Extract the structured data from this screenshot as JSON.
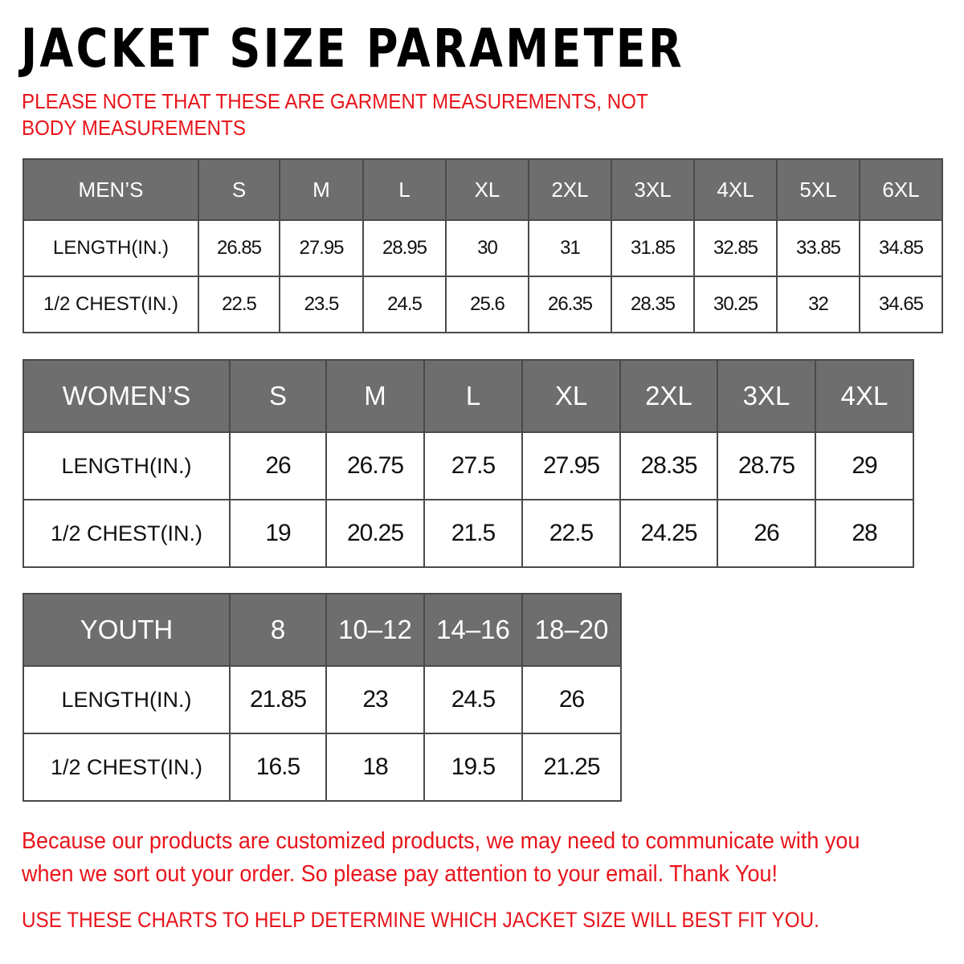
{
  "title": "JACKET SIZE PARAMETER",
  "note": "PLEASE NOTE THAT THESE ARE GARMENT MEASUREMENTS, NOT BODY MEASUREMENTS",
  "colors": {
    "header_bg": "#6e6e6e",
    "accent_red": "#e8141b"
  },
  "tables": {
    "men": {
      "header": [
        "MEN’S",
        "S",
        "M",
        "L",
        "XL",
        "2XL",
        "3XL",
        "4XL",
        "5XL",
        "6XL"
      ],
      "rows": [
        [
          "LENGTH(IN.)",
          "26.85",
          "27.95",
          "28.95",
          "30",
          "31",
          "31.85",
          "32.85",
          "33.85",
          "34.85"
        ],
        [
          "1/2 CHEST(IN.)",
          "22.5",
          "23.5",
          "24.5",
          "25.6",
          "26.35",
          "28.35",
          "30.25",
          "32",
          "34.65"
        ]
      ]
    },
    "women": {
      "header": [
        "WOMEN’S",
        "S",
        "M",
        "L",
        "XL",
        "2XL",
        "3XL",
        "4XL"
      ],
      "rows": [
        [
          "LENGTH(IN.)",
          "26",
          "26.75",
          "27.5",
          "27.95",
          "28.35",
          "28.75",
          "29"
        ],
        [
          "1/2 CHEST(IN.)",
          "19",
          "20.25",
          "21.5",
          "22.5",
          "24.25",
          "26",
          "28"
        ]
      ]
    },
    "youth": {
      "header": [
        "YOUTH",
        "8",
        "10–12",
        "14–16",
        "18–20"
      ],
      "rows": [
        [
          "LENGTH(IN.)",
          "21.85",
          "23",
          "24.5",
          "26"
        ],
        [
          "1/2 CHEST(IN.)",
          "16.5",
          "18",
          "19.5",
          "21.25"
        ]
      ]
    }
  },
  "footer": {
    "message": "Because our products are customized products, we may need to communicate with you when we sort out your order. So please pay attention to your email. Thank You!",
    "tip": "USE THESE CHARTS TO HELP DETERMINE WHICH JACKET SIZE WILL BEST FIT YOU."
  }
}
